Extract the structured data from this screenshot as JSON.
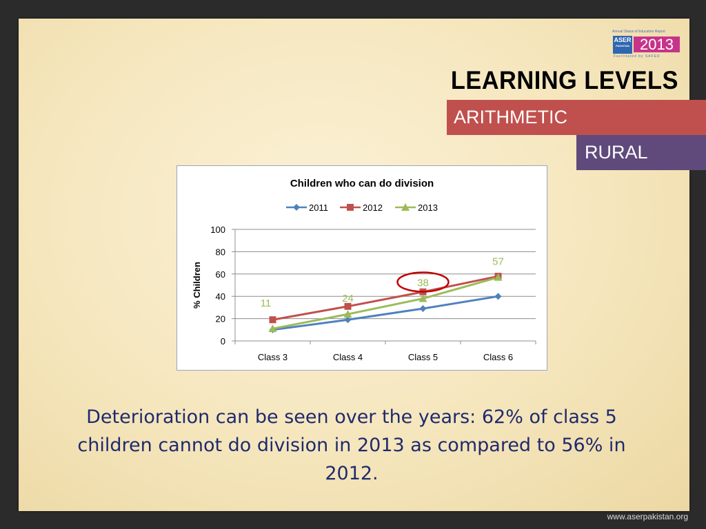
{
  "logo": {
    "top_text": "Annual Status of Education Report",
    "aser": "ASER",
    "pakistan": "PAKISTAN",
    "year": "2013",
    "facilitated": "Facilitated by SAFED"
  },
  "header": {
    "title": "LEARNING LEVELS",
    "subject": "ARITHMETIC",
    "area": "RURAL"
  },
  "colors": {
    "subject_band": "#c0504d",
    "area_band": "#604a7b",
    "series_2011": "#4f81bd",
    "series_2012": "#c0504d",
    "series_2013": "#9bbb59",
    "highlight_circle": "#c00000"
  },
  "chart_data": {
    "type": "line",
    "title": "Children who can do division",
    "ylabel": "% Children",
    "xlabel": "",
    "categories": [
      "Class 3",
      "Class 4",
      "Class 5",
      "Class 6"
    ],
    "ylim": [
      0,
      100
    ],
    "yticks": [
      0,
      20,
      40,
      60,
      80,
      100
    ],
    "grid": true,
    "legend": "top-center",
    "series": [
      {
        "name": "2011",
        "values": [
          10,
          19,
          29,
          40
        ],
        "color": "#4f81bd",
        "marker": "diamond"
      },
      {
        "name": "2012",
        "values": [
          19,
          31,
          44,
          58
        ],
        "color": "#c0504d",
        "marker": "square"
      },
      {
        "name": "2013",
        "values": [
          11,
          24,
          38,
          57
        ],
        "color": "#9bbb59",
        "marker": "triangle"
      }
    ],
    "data_labels": [
      {
        "series": "2013",
        "category": "Class 3",
        "text": "11",
        "value": 11
      },
      {
        "series": "2013",
        "category": "Class 4",
        "text": "24",
        "value": 24
      },
      {
        "series": "2013",
        "category": "Class 5",
        "text": "38",
        "value": 38
      },
      {
        "series": "2013",
        "category": "Class 6",
        "text": "57",
        "value": 57
      }
    ],
    "highlight": {
      "category": "Class 5",
      "value": 38
    }
  },
  "caption": "Deterioration can be seen over the years: 62% of class 5 children cannot do division in 2013 as compared to 56% in 2012.",
  "footer": "www.aserpakistan.org"
}
